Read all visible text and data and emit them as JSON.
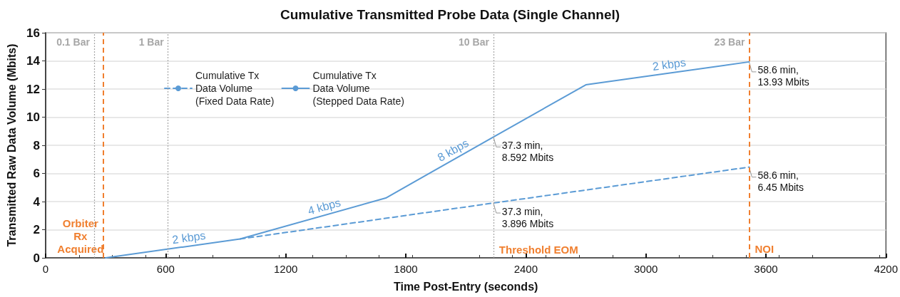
{
  "chart_data": {
    "type": "line",
    "title": "Cumulative Transmitted Probe Data (Single Channel)",
    "xlabel": "Time Post-Entry (seconds)",
    "ylabel": "Transmitted Raw Data Volume (Mbits)",
    "series": [
      {
        "name": "Cumulative Tx\nData Volume\n(Fixed Data Rate)",
        "color": "#5b9bd5",
        "line_style": "dashed",
        "x": [
          972,
          2238,
          3516
        ],
        "values": [
          1.34,
          3.896,
          6.45
        ]
      },
      {
        "name": "Cumulative Tx\nData Volume\n(Stepped Data Rate)",
        "color": "#5b9bd5",
        "line_style": "solid",
        "x": [
          300,
          972,
          1700,
          2238,
          2700,
          3516
        ],
        "values": [
          0,
          1.34,
          4.25,
          8.592,
          12.3,
          13.93
        ]
      }
    ],
    "xlim": [
      0,
      4200
    ],
    "xticks": [
      0,
      600,
      1200,
      1800,
      2400,
      3000,
      3600,
      4200
    ],
    "ylim": [
      0,
      16
    ],
    "yticks": [
      0,
      2,
      4,
      6,
      8,
      10,
      12,
      14,
      16
    ],
    "grid": "y",
    "legend": "top left",
    "marker": "none",
    "ref_lines": [
      {
        "axis": "x",
        "value": 242,
        "label": "0.1 Bar",
        "color": "#a6a6a6",
        "line_style": "dotted"
      },
      {
        "axis": "x",
        "value": 288,
        "label": "Orbiter\nRx\nAcquired",
        "color": "#f07f2f",
        "line_style": "dashed"
      },
      {
        "axis": "x",
        "value": 612,
        "label": "1 Bar",
        "color": "#a6a6a6",
        "line_style": "dotted"
      },
      {
        "axis": "x",
        "value": 2238,
        "label": "10 Bar",
        "color": "#a6a6a6",
        "line_style": "dotted"
      },
      {
        "axis": "x",
        "value": 3516,
        "label": "NOI",
        "color": "#f07f2f",
        "line_style": "dashed"
      }
    ],
    "annotations": [
      {
        "text": "2 kbps",
        "x": 720,
        "y": 0.84
      },
      {
        "text": "4 kbps",
        "x": 1400,
        "y": 3.05
      },
      {
        "text": "8 kbps",
        "x": 2050,
        "y": 7.1
      },
      {
        "text": "2 kbps",
        "x": 3120,
        "y": 13.15
      },
      {
        "text": "37.3 min,\n8.592 Mbits",
        "x": 2238,
        "y": 8.592
      },
      {
        "text": "37.3 min,\n3.896 Mbits",
        "x": 2238,
        "y": 3.896
      },
      {
        "text": "58.6 min,\n13.93 Mbits",
        "x": 3516,
        "y": 13.93
      },
      {
        "text": "58.6 min,\n6.45 Mbits",
        "x": 3516,
        "y": 6.45
      },
      {
        "text": "Threshold EOM",
        "x": 2238,
        "y": 0
      },
      {
        "text": "23 Bar",
        "x": 3516,
        "y": 16
      }
    ]
  }
}
